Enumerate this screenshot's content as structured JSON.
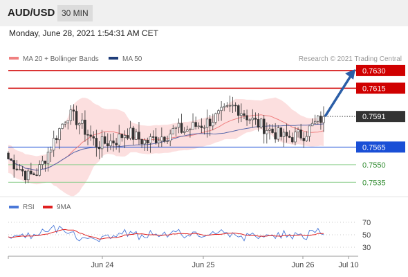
{
  "header": {
    "pair": "AUD/USD",
    "timeframe": "30 MIN"
  },
  "datetime": "Monday, June 28, 2021 1:54:31 AM CET",
  "legend": {
    "ma_bb": {
      "label": "MA 20 + Bollinger Bands",
      "color": "#f08080"
    },
    "ma50": {
      "label": "MA 50",
      "color": "#1f3d7a"
    },
    "copyright": "Research © 2021 Trading Central"
  },
  "chart_data": [
    {
      "type": "candlestick",
      "ylim": [
        0.7524,
        0.7637
      ],
      "levels": [
        {
          "value": 0.763,
          "label": "0.7630",
          "kind": "resistance",
          "color": "#d00000"
        },
        {
          "value": 0.7615,
          "label": "0.7615",
          "kind": "resistance",
          "color": "#d00000"
        },
        {
          "value": 0.7591,
          "label": "0.7591",
          "kind": "current",
          "color": "#333333"
        },
        {
          "value": 0.7565,
          "label": "0.7565",
          "kind": "pivot",
          "color": "#1a4fd6"
        },
        {
          "value": 0.755,
          "label": "0.7550",
          "kind": "support",
          "color": "#2e8b2e"
        },
        {
          "value": 0.7535,
          "label": "0.7535",
          "kind": "support",
          "color": "#2e8b2e"
        }
      ],
      "price_path": [
        0.7555,
        0.7548,
        0.754,
        0.7544,
        0.756,
        0.7577,
        0.7593,
        0.7588,
        0.7577,
        0.7567,
        0.7569,
        0.7571,
        0.7578,
        0.7573,
        0.7569,
        0.7573,
        0.7575,
        0.758,
        0.7579,
        0.7583,
        0.7585,
        0.759,
        0.7595,
        0.76,
        0.7593,
        0.7586,
        0.7582,
        0.7577,
        0.7573,
        0.7574,
        0.7576,
        0.7584,
        0.7591
      ],
      "projection": {
        "from": 0.7591,
        "to": 0.763,
        "color": "#2b5ea7"
      },
      "x_ticks": [
        "Jun 24",
        "Jun 25",
        "Jun 26",
        "Jul 10"
      ]
    },
    {
      "type": "line",
      "title": "RSI",
      "series": [
        {
          "name": "RSI",
          "color": "#4a78d8"
        },
        {
          "name": "9MA",
          "color": "#e02020"
        }
      ],
      "ylim": [
        20,
        80
      ],
      "y_ticks": [
        70,
        50,
        30
      ]
    }
  ]
}
